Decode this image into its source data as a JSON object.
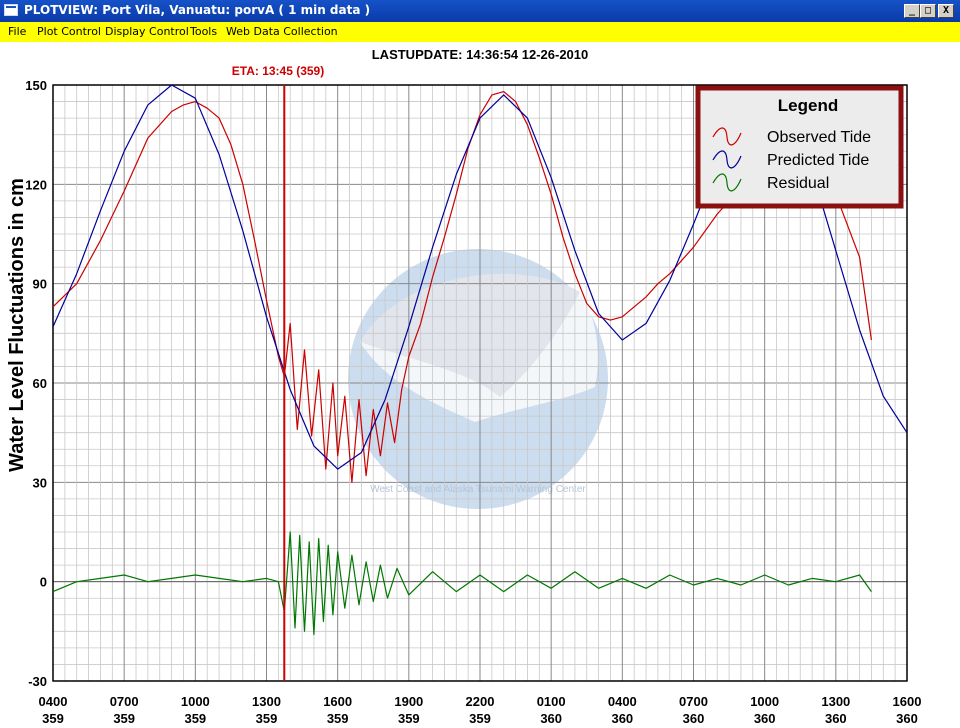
{
  "window": {
    "title": "PLOTVIEW:  Port Vila, Vanuatu: porvA (  1 min data )",
    "min_label": "_",
    "max_label": "□",
    "close_label": "X"
  },
  "menu": [
    "File",
    "Plot Control",
    "Display Control",
    "Tools",
    "Web Data Collection"
  ],
  "colors": {
    "titlebar": "#0a3aa8",
    "menubar": "#ffff00",
    "observed": "#cc0000",
    "predicted": "#000099",
    "residual": "#007700",
    "eta_line": "#cc0000",
    "legend_border": "#8b1010",
    "logo": "#8fb4dc"
  },
  "watermark": {
    "icon": "noaa-logo-icon",
    "text": "West Coast and Alaska Tsunami Warning Center"
  },
  "chart_data": {
    "type": "line",
    "title": "LASTUPDATE: 14:36:54  12-26-2010",
    "eta_label": "ETA: 13:45 (359)",
    "eta_x": 9.75,
    "ylabel": "Water Level Fluctuations in cm",
    "xlabel": "",
    "x_unit": "hours since 0400 day 359",
    "xlim": [
      0,
      36
    ],
    "ylim": [
      -30,
      150
    ],
    "yticks": [
      -30,
      0,
      30,
      60,
      90,
      120,
      150
    ],
    "xticks": [
      {
        "x": 0,
        "time": "0400",
        "day": "359"
      },
      {
        "x": 3,
        "time": "0700",
        "day": "359"
      },
      {
        "x": 6,
        "time": "1000",
        "day": "359"
      },
      {
        "x": 9,
        "time": "1300",
        "day": "359"
      },
      {
        "x": 12,
        "time": "1600",
        "day": "359"
      },
      {
        "x": 15,
        "time": "1900",
        "day": "359"
      },
      {
        "x": 18,
        "time": "2200",
        "day": "359"
      },
      {
        "x": 21,
        "time": "0100",
        "day": "360"
      },
      {
        "x": 24,
        "time": "0400",
        "day": "360"
      },
      {
        "x": 27,
        "time": "0700",
        "day": "360"
      },
      {
        "x": 30,
        "time": "1000",
        "day": "360"
      },
      {
        "x": 33,
        "time": "1300",
        "day": "360"
      },
      {
        "x": 36,
        "time": "1600",
        "day": "360"
      }
    ],
    "grid": true,
    "legend": {
      "title": "Legend",
      "placement": "top-right"
    },
    "series": [
      {
        "name": "Observed Tide",
        "x": [
          0,
          1,
          2,
          3,
          4,
          5,
          5.5,
          6,
          6.5,
          7,
          7.5,
          8,
          8.5,
          9,
          9.5,
          9.75,
          10,
          10.3,
          10.6,
          10.9,
          11.2,
          11.5,
          11.8,
          12,
          12.3,
          12.6,
          12.9,
          13.2,
          13.5,
          13.8,
          14.1,
          14.4,
          14.7,
          15,
          15.5,
          16,
          16.5,
          17,
          17.5,
          18,
          18.5,
          19,
          19.5,
          20,
          20.5,
          21,
          21.5,
          22,
          22.5,
          23,
          23.5,
          24,
          24.5,
          25,
          25.5,
          26,
          27,
          28,
          29,
          30,
          31,
          32,
          33,
          34,
          34.5
        ],
        "y": [
          83,
          90,
          103,
          118,
          134,
          142,
          144,
          145,
          143,
          140,
          132,
          120,
          103,
          85,
          68,
          62,
          78,
          46,
          70,
          44,
          64,
          34,
          60,
          38,
          56,
          30,
          55,
          32,
          52,
          38,
          54,
          42,
          58,
          68,
          78,
          92,
          104,
          117,
          131,
          141,
          147,
          148,
          145,
          138,
          128,
          117,
          104,
          93,
          84,
          80,
          79,
          80,
          83,
          86,
          90,
          93,
          101,
          111,
          119,
          125,
          130,
          129,
          117,
          98,
          73
        ]
      },
      {
        "name": "Predicted Tide",
        "x": [
          0,
          1,
          2,
          3,
          4,
          5,
          6,
          7,
          8,
          9,
          10,
          11,
          12,
          13,
          14,
          15,
          16,
          17,
          18,
          19,
          20,
          21,
          22,
          23,
          24,
          25,
          26,
          27,
          28,
          29,
          30,
          31,
          32,
          33,
          34,
          35,
          36
        ],
        "y": [
          77,
          93,
          112,
          130,
          144,
          150,
          146,
          129,
          106,
          80,
          58,
          41,
          34,
          39,
          55,
          77,
          101,
          123,
          140,
          147,
          140,
          122,
          100,
          81,
          73,
          78,
          91,
          108,
          126,
          140,
          146,
          141,
          124,
          100,
          76,
          56,
          45
        ]
      },
      {
        "name": "Residual",
        "x": [
          0,
          1,
          2,
          3,
          4,
          5,
          6,
          7,
          8,
          9,
          9.5,
          9.75,
          10,
          10.2,
          10.4,
          10.6,
          10.8,
          11,
          11.2,
          11.4,
          11.6,
          11.8,
          12,
          12.3,
          12.6,
          12.9,
          13.2,
          13.5,
          13.8,
          14.1,
          14.5,
          15,
          16,
          17,
          18,
          19,
          20,
          21,
          22,
          23,
          24,
          25,
          26,
          27,
          28,
          29,
          30,
          31,
          32,
          33,
          34,
          34.5
        ],
        "y": [
          -3,
          0,
          1,
          2,
          0,
          1,
          2,
          1,
          0,
          1,
          0,
          -9,
          15,
          -14,
          14,
          -15,
          12,
          -16,
          13,
          -12,
          11,
          -10,
          9,
          -8,
          8,
          -7,
          6,
          -6,
          5,
          -5,
          4,
          -4,
          3,
          -3,
          2,
          -3,
          2,
          -2,
          3,
          -2,
          1,
          -2,
          2,
          -1,
          1,
          -1,
          2,
          -1,
          1,
          0,
          2,
          -3
        ]
      }
    ]
  }
}
